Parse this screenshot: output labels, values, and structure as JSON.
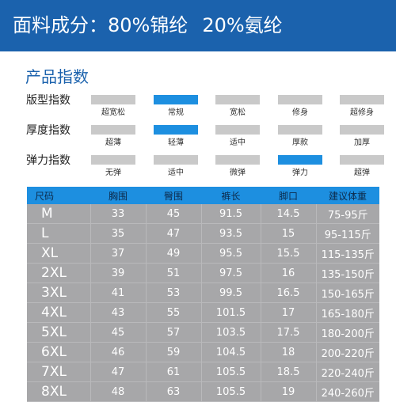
{
  "header": {
    "material_label": "面料成分：",
    "nylon": "80%锦纶",
    "spandex": "20%氨纶"
  },
  "section_title": "产品指数",
  "indices": [
    {
      "label": "版型指数",
      "options": [
        "超宽松",
        "常规",
        "宽松",
        "修身",
        "超修身"
      ],
      "active_index": 1
    },
    {
      "label": "厚度指数",
      "options": [
        "超薄",
        "轻薄",
        "适中",
        "厚款",
        "加厚"
      ],
      "active_index": 1
    },
    {
      "label": "弹力指数",
      "options": [
        "无弹",
        "适中",
        "微弹",
        "弹力",
        "超弹"
      ],
      "active_index": 3
    }
  ],
  "colors": {
    "header_bg": "#1b62ad",
    "accent_bar": "#1d8fe0",
    "inactive_bar": "#c9c9c9",
    "table_body": "#a7a7a9"
  },
  "size_table": {
    "headers": [
      "尺码",
      "胸围",
      "臀围",
      "裤长",
      "脚口",
      "建议体重"
    ],
    "rows": [
      [
        "M",
        "33",
        "45",
        "91.5",
        "14.5",
        "75-95斤"
      ],
      [
        "L",
        "35",
        "47",
        "93.5",
        "15",
        "95-115斤"
      ],
      [
        "XL",
        "37",
        "49",
        "95.5",
        "15.5",
        "115-135斤"
      ],
      [
        "2XL",
        "39",
        "51",
        "97.5",
        "16",
        "135-150斤"
      ],
      [
        "3XL",
        "41",
        "53",
        "99.5",
        "16.5",
        "150-165斤"
      ],
      [
        "4XL",
        "43",
        "55",
        "101.5",
        "17",
        "165-180斤"
      ],
      [
        "5XL",
        "45",
        "57",
        "103.5",
        "17.5",
        "180-200斤"
      ],
      [
        "6XL",
        "46",
        "59",
        "104.5",
        "18",
        "200-220斤"
      ],
      [
        "7XL",
        "47",
        "61",
        "105.5",
        "18.5",
        "220-240斤"
      ],
      [
        "8XL",
        "48",
        "63",
        "105.5",
        "19",
        "240-260斤"
      ]
    ]
  }
}
